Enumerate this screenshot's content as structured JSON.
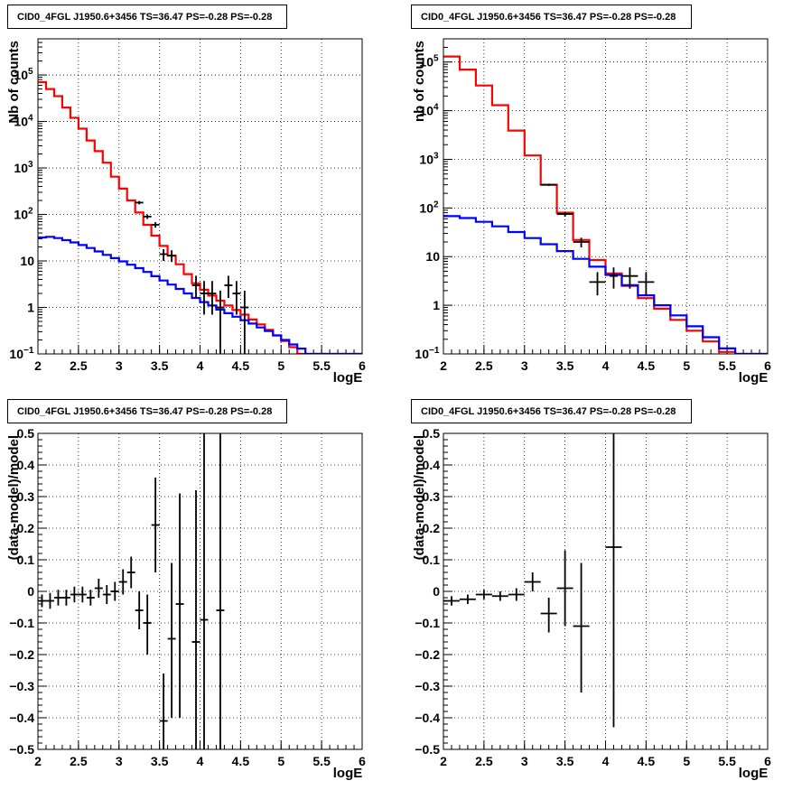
{
  "chart_data": [
    {
      "type": "line",
      "panel": "top-left",
      "title": "CID0_4FGL J1950.6+3456 TS=36.47 PS=-0.28 PS=-0.28",
      "xlabel": "logE",
      "ylabel": "Nb of counts",
      "xlim": [
        2,
        6
      ],
      "ylim": [
        0.1,
        600000
      ],
      "yscale": "log",
      "grid": true,
      "x_ticks": [
        "2",
        "2.5",
        "3",
        "3.5",
        "4",
        "4.5",
        "5",
        "5.5",
        "6"
      ],
      "y_ticks": [
        {
          "v": 0.1,
          "label": "10",
          "sup": "−1"
        },
        {
          "v": 1,
          "label": "1",
          "sup": ""
        },
        {
          "v": 10,
          "label": "10",
          "sup": ""
        },
        {
          "v": 100,
          "label": "10",
          "sup": "2"
        },
        {
          "v": 1000,
          "label": "10",
          "sup": "3"
        },
        {
          "v": 10000,
          "label": "10",
          "sup": "4"
        },
        {
          "v": 100000,
          "label": "10",
          "sup": "5"
        }
      ],
      "bin_edges": [
        2.0,
        2.1,
        2.2,
        2.3,
        2.4,
        2.5,
        2.6,
        2.7,
        2.8,
        2.9,
        3.0,
        3.1,
        3.2,
        3.3,
        3.4,
        3.5,
        3.6,
        3.7,
        3.8,
        3.9,
        4.0,
        4.1,
        4.2,
        4.3,
        4.4,
        4.5,
        4.6,
        4.7,
        4.8,
        4.9,
        5.0,
        5.1,
        5.2,
        5.3,
        5.4,
        5.5,
        5.6,
        5.7,
        5.8,
        5.9,
        6.0
      ],
      "series": [
        {
          "color": "#ff0000",
          "kind": "step",
          "values": [
            70000,
            50000,
            35000,
            20000,
            12000,
            7000,
            3900,
            2300,
            1300,
            650,
            360,
            200,
            110,
            60,
            35,
            21,
            13,
            8.5,
            5.2,
            3.3,
            2.4,
            1.8,
            1.4,
            1.1,
            0.88,
            0.7,
            0.55,
            0.43,
            0.33,
            0.25,
            0.19,
            0.14,
            0.1,
            0.1,
            0.1,
            0.1,
            0.1,
            0.1,
            0.1,
            0.1
          ]
        },
        {
          "color": "#0000ff",
          "kind": "step",
          "values": [
            32,
            33,
            31,
            28,
            25,
            22,
            19,
            16,
            13.5,
            11.5,
            9.8,
            8.3,
            7,
            5.8,
            4.7,
            3.8,
            3.1,
            2.5,
            2.0,
            1.6,
            1.3,
            1.1,
            0.9,
            0.75,
            0.63,
            0.53,
            0.45,
            0.37,
            0.31,
            0.25,
            0.2,
            0.16,
            0.13,
            0.1,
            0.1,
            0.1,
            0.1,
            0.1,
            0.1,
            0.1
          ]
        },
        {
          "color": "#000000",
          "kind": "points",
          "points": [
            {
              "x": 3.25,
              "y": 180,
              "lo": 165,
              "hi": 195,
              "xe": 0.05
            },
            {
              "x": 3.35,
              "y": 90,
              "lo": 80,
              "hi": 100,
              "xe": 0.05
            },
            {
              "x": 3.45,
              "y": 60,
              "lo": 52,
              "hi": 68,
              "xe": 0.05
            },
            {
              "x": 3.55,
              "y": 14,
              "lo": 10,
              "hi": 18,
              "xe": 0.05
            },
            {
              "x": 3.65,
              "y": 13,
              "lo": 9.5,
              "hi": 17,
              "xe": 0.05
            },
            {
              "x": 3.95,
              "y": 3,
              "lo": 1.6,
              "hi": 4.8,
              "xe": 0.05
            },
            {
              "x": 4.05,
              "y": 2,
              "lo": 0.7,
              "hi": 3.7,
              "xe": 0.05
            },
            {
              "x": 4.15,
              "y": 2,
              "lo": 0.7,
              "hi": 3.7,
              "xe": 0.05
            },
            {
              "x": 4.25,
              "y": 1,
              "lo": 0.1,
              "hi": 2.3,
              "xe": 0.05
            },
            {
              "x": 4.35,
              "y": 3,
              "lo": 1.6,
              "hi": 4.8,
              "xe": 0.05
            },
            {
              "x": 4.45,
              "y": 2,
              "lo": 0.7,
              "hi": 3.7,
              "xe": 0.05
            },
            {
              "x": 4.55,
              "y": 1,
              "lo": 0.1,
              "hi": 2.3,
              "xe": 0.05
            }
          ]
        }
      ]
    },
    {
      "type": "line",
      "panel": "top-right",
      "title": "CID0_4FGL J1950.6+3456 TS=36.47 PS=-0.28 PS=-0.28",
      "xlabel": "logE",
      "ylabel": "nb of counts",
      "xlim": [
        2,
        6
      ],
      "ylim": [
        0.1,
        300000
      ],
      "yscale": "log",
      "grid": true,
      "x_ticks": [
        "2",
        "2.5",
        "3",
        "3.5",
        "4",
        "4.5",
        "5",
        "5.5",
        "6"
      ],
      "y_ticks": [
        {
          "v": 0.1,
          "label": "10",
          "sup": "−1"
        },
        {
          "v": 1,
          "label": "1",
          "sup": ""
        },
        {
          "v": 10,
          "label": "10",
          "sup": ""
        },
        {
          "v": 100,
          "label": "10",
          "sup": "2"
        },
        {
          "v": 1000,
          "label": "10",
          "sup": "3"
        },
        {
          "v": 10000,
          "label": "10",
          "sup": "4"
        },
        {
          "v": 100000,
          "label": "10",
          "sup": "5"
        }
      ],
      "bin_edges": [
        2.0,
        2.2,
        2.4,
        2.6,
        2.8,
        3.0,
        3.2,
        3.4,
        3.6,
        3.8,
        4.0,
        4.2,
        4.4,
        4.6,
        4.8,
        5.0,
        5.2,
        5.4,
        5.6,
        5.8,
        6.0
      ],
      "series": [
        {
          "color": "#ff0000",
          "kind": "step",
          "values": [
            130000,
            70000,
            33000,
            13000,
            3900,
            1200,
            300,
            80,
            22,
            8.5,
            4.5,
            2.5,
            1.4,
            0.85,
            0.5,
            0.3,
            0.18,
            0.11,
            0.1,
            0.1
          ]
        },
        {
          "color": "#0000ff",
          "kind": "step",
          "values": [
            68,
            62,
            52,
            42,
            32,
            24,
            18,
            13,
            9,
            6.2,
            4.2,
            2.6,
            1.6,
            1.0,
            0.62,
            0.37,
            0.22,
            0.13,
            0.1,
            0.1
          ]
        },
        {
          "color": "#000000",
          "kind": "points",
          "points": [
            {
              "x": 3.3,
              "y": 300,
              "lo": 283,
              "hi": 317,
              "xe": 0.1
            },
            {
              "x": 3.5,
              "y": 75,
              "lo": 66,
              "hi": 84,
              "xe": 0.1
            },
            {
              "x": 3.7,
              "y": 20,
              "lo": 15.5,
              "hi": 24.5,
              "xe": 0.1
            },
            {
              "x": 3.9,
              "y": 3,
              "lo": 1.6,
              "hi": 4.8,
              "xe": 0.1
            },
            {
              "x": 4.1,
              "y": 4,
              "lo": 2.2,
              "hi": 6
            },
            {
              "x": 4.3,
              "y": 4,
              "lo": 2.2,
              "hi": 6,
              "xe": 0.1
            },
            {
              "x": 4.5,
              "y": 3,
              "lo": 1.6,
              "hi": 4.8,
              "xe": 0.1
            }
          ]
        }
      ]
    },
    {
      "type": "scatter",
      "panel": "bottom-left",
      "title": "CID0_4FGL J1950.6+3456 TS=36.47 PS=-0.28 PS=-0.28",
      "xlabel": "logE",
      "ylabel": "(data-model)/model",
      "xlim": [
        2,
        6
      ],
      "ylim": [
        -0.5,
        0.5
      ],
      "yscale": "linear",
      "grid": true,
      "x_ticks": [
        "2",
        "2.5",
        "3",
        "3.5",
        "4",
        "4.5",
        "5",
        "5.5",
        "6"
      ],
      "y_ticks": [
        {
          "v": -0.5,
          "label": "−0.5"
        },
        {
          "v": -0.4,
          "label": "−0.4"
        },
        {
          "v": -0.3,
          "label": "−0.3"
        },
        {
          "v": -0.2,
          "label": "−0.2"
        },
        {
          "v": -0.1,
          "label": "−0.1"
        },
        {
          "v": 0,
          "label": "0"
        },
        {
          "v": 0.1,
          "label": "0.1"
        },
        {
          "v": 0.2,
          "label": "0.2"
        },
        {
          "v": 0.3,
          "label": "0.3"
        },
        {
          "v": 0.4,
          "label": "0.4"
        },
        {
          "v": 0.5,
          "label": "0.5"
        }
      ],
      "series": [
        {
          "color": "#000000",
          "kind": "points",
          "points": [
            {
              "x": 2.05,
              "y": -0.03,
              "lo": -0.05,
              "hi": -0.01,
              "xe": 0.05
            },
            {
              "x": 2.15,
              "y": -0.03,
              "lo": -0.055,
              "hi": -0.005,
              "xe": 0.05
            },
            {
              "x": 2.25,
              "y": -0.02,
              "lo": -0.045,
              "hi": 0.005,
              "xe": 0.05
            },
            {
              "x": 2.35,
              "y": -0.02,
              "lo": -0.045,
              "hi": 0.005,
              "xe": 0.05
            },
            {
              "x": 2.45,
              "y": -0.01,
              "lo": -0.035,
              "hi": 0.015,
              "xe": 0.05
            },
            {
              "x": 2.55,
              "y": -0.01,
              "lo": -0.035,
              "hi": 0.015,
              "xe": 0.05
            },
            {
              "x": 2.65,
              "y": -0.02,
              "lo": -0.045,
              "hi": 0.005,
              "xe": 0.05
            },
            {
              "x": 2.75,
              "y": 0.01,
              "lo": -0.02,
              "hi": 0.04,
              "xe": 0.05
            },
            {
              "x": 2.85,
              "y": -0.01,
              "lo": -0.04,
              "hi": 0.02,
              "xe": 0.05
            },
            {
              "x": 2.95,
              "y": 0.0,
              "lo": -0.03,
              "hi": 0.03,
              "xe": 0.05
            },
            {
              "x": 3.05,
              "y": 0.03,
              "lo": -0.01,
              "hi": 0.07,
              "xe": 0.05
            },
            {
              "x": 3.15,
              "y": 0.06,
              "lo": 0.01,
              "hi": 0.11,
              "xe": 0.05
            },
            {
              "x": 3.25,
              "y": -0.06,
              "lo": -0.12,
              "hi": 0.0,
              "xe": 0.05
            },
            {
              "x": 3.35,
              "y": -0.1,
              "lo": -0.2,
              "hi": -0.01,
              "xe": 0.05
            },
            {
              "x": 3.45,
              "y": 0.21,
              "lo": 0.06,
              "hi": 0.36,
              "xe": 0.05
            },
            {
              "x": 3.55,
              "y": -0.41,
              "lo": -0.56,
              "hi": -0.26,
              "xe": 0.05
            },
            {
              "x": 3.65,
              "y": -0.15,
              "lo": -0.4,
              "hi": 0.09,
              "xe": 0.05
            },
            {
              "x": 3.75,
              "y": -0.04,
              "lo": -0.4,
              "hi": 0.31,
              "xe": 0.05
            },
            {
              "x": 3.95,
              "y": -0.16,
              "lo": -0.65,
              "hi": 0.32,
              "xe": 0.05
            },
            {
              "x": 4.05,
              "y": -0.09,
              "lo": -0.8,
              "hi": 0.65,
              "xe": 0.05
            },
            {
              "x": 4.25,
              "y": -0.06,
              "lo": -0.95,
              "hi": 0.85,
              "xe": 0.05
            }
          ]
        }
      ]
    },
    {
      "type": "scatter",
      "panel": "bottom-right",
      "title": "CID0_4FGL J1950.6+3456 TS=36.47 PS=-0.28 PS=-0.28",
      "xlabel": "logE",
      "ylabel": "(data-model)/model",
      "xlim": [
        2,
        6
      ],
      "ylim": [
        -0.5,
        0.5
      ],
      "yscale": "linear",
      "grid": true,
      "x_ticks": [
        "2",
        "2.5",
        "3",
        "3.5",
        "4",
        "4.5",
        "5",
        "5.5",
        "6"
      ],
      "y_ticks": [
        {
          "v": -0.5,
          "label": "−0.5"
        },
        {
          "v": -0.4,
          "label": "−0.4"
        },
        {
          "v": -0.3,
          "label": "−0.3"
        },
        {
          "v": -0.2,
          "label": "−0.2"
        },
        {
          "v": -0.1,
          "label": "−0.1"
        },
        {
          "v": 0,
          "label": "0"
        },
        {
          "v": 0.1,
          "label": "0.1"
        },
        {
          "v": 0.2,
          "label": "0.2"
        },
        {
          "v": 0.3,
          "label": "0.3"
        },
        {
          "v": 0.4,
          "label": "0.4"
        },
        {
          "v": 0.5,
          "label": "0.5"
        }
      ],
      "series": [
        {
          "color": "#000000",
          "kind": "points",
          "points": [
            {
              "x": 2.1,
              "y": -0.03,
              "lo": -0.045,
              "hi": -0.015,
              "xe": 0.1
            },
            {
              "x": 2.3,
              "y": -0.025,
              "lo": -0.04,
              "hi": -0.01,
              "xe": 0.1
            },
            {
              "x": 2.5,
              "y": -0.01,
              "lo": -0.025,
              "hi": 0.005,
              "xe": 0.1
            },
            {
              "x": 2.7,
              "y": -0.015,
              "lo": -0.03,
              "hi": 0.0,
              "xe": 0.1
            },
            {
              "x": 2.9,
              "y": -0.01,
              "lo": -0.03,
              "hi": 0.01,
              "xe": 0.1
            },
            {
              "x": 3.1,
              "y": 0.03,
              "lo": 0.0,
              "hi": 0.06,
              "xe": 0.1
            },
            {
              "x": 3.3,
              "y": -0.07,
              "lo": -0.13,
              "hi": -0.02,
              "xe": 0.1
            },
            {
              "x": 3.5,
              "y": 0.01,
              "lo": -0.11,
              "hi": 0.13,
              "xe": 0.1
            },
            {
              "x": 3.7,
              "y": -0.11,
              "lo": -0.32,
              "hi": 0.09,
              "xe": 0.1
            },
            {
              "x": 4.1,
              "y": 0.14,
              "lo": -0.43,
              "hi": 0.72,
              "xe": 0.1
            }
          ]
        }
      ]
    }
  ]
}
